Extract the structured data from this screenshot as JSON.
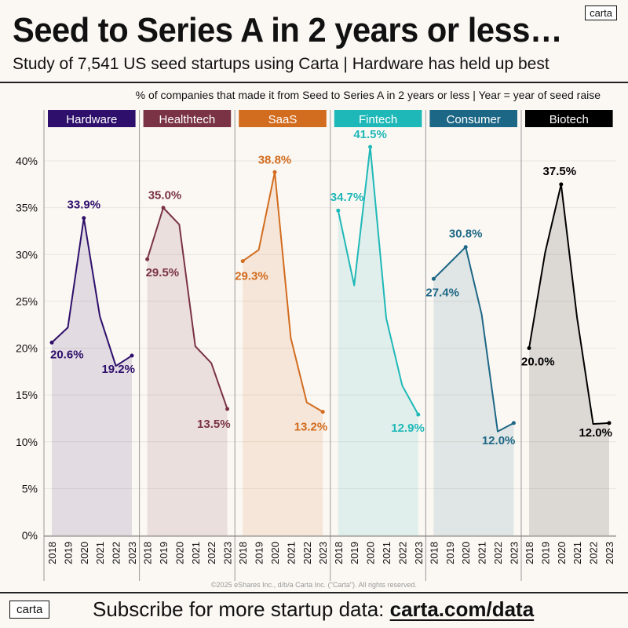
{
  "header": {
    "title": "Seed to Series A in 2 years or less…",
    "subtitle": "Study of 7,541 US seed startups using Carta | Hardware has held up best",
    "logo": "carta"
  },
  "chart_data": {
    "type": "line",
    "caption": "% of companies that made it from Seed to Series A in 2 years or less  |  Year = year of seed raise",
    "categories": [
      "2018",
      "2019",
      "2020",
      "2021",
      "2022",
      "2023"
    ],
    "y_ticks": [
      "0%",
      "5%",
      "10%",
      "15%",
      "20%",
      "25%",
      "30%",
      "35%",
      "40%"
    ],
    "ylim": [
      0,
      43
    ],
    "grid": true,
    "area_fill": true,
    "series": [
      {
        "name": "Hardware",
        "color": "#2e0f6b",
        "values": [
          20.6,
          22.2,
          33.9,
          23.4,
          18.1,
          19.2
        ],
        "labels": [
          "20.6%",
          null,
          "33.9%",
          null,
          null,
          "19.2%"
        ]
      },
      {
        "name": "Healthtech",
        "color": "#7a3344",
        "values": [
          29.5,
          35.0,
          33.2,
          20.2,
          18.4,
          13.5
        ],
        "labels": [
          "29.5%",
          "35.0%",
          null,
          null,
          null,
          "13.5%"
        ]
      },
      {
        "name": "SaaS",
        "color": "#d26c1f",
        "values": [
          29.3,
          30.5,
          38.8,
          21.1,
          14.2,
          13.2
        ],
        "labels": [
          "29.3%",
          null,
          "38.8%",
          null,
          null,
          "13.2%"
        ]
      },
      {
        "name": "Fintech",
        "color": "#1fb8b8",
        "values": [
          34.7,
          26.7,
          41.5,
          23.2,
          16.0,
          12.9
        ],
        "labels": [
          "34.7%",
          null,
          "41.5%",
          null,
          null,
          "12.9%"
        ]
      },
      {
        "name": "Consumer",
        "color": "#1d6786",
        "values": [
          27.4,
          29.1,
          30.8,
          23.6,
          11.1,
          12.0
        ],
        "labels": [
          "27.4%",
          null,
          "30.8%",
          null,
          null,
          "12.0%"
        ]
      },
      {
        "name": "Biotech",
        "color": "#000000",
        "values": [
          20.0,
          30.2,
          37.5,
          23.2,
          11.9,
          12.0
        ],
        "labels": [
          "20.0%",
          null,
          "37.5%",
          null,
          null,
          "12.0%"
        ]
      }
    ]
  },
  "footer": {
    "copyright": "©2025 eShares Inc., d/b/a Carta Inc. (\"Carta\"). All rights reserved.",
    "logo": "carta",
    "cta": "Subscribe for more startup data: ",
    "link": "carta.com/data"
  }
}
